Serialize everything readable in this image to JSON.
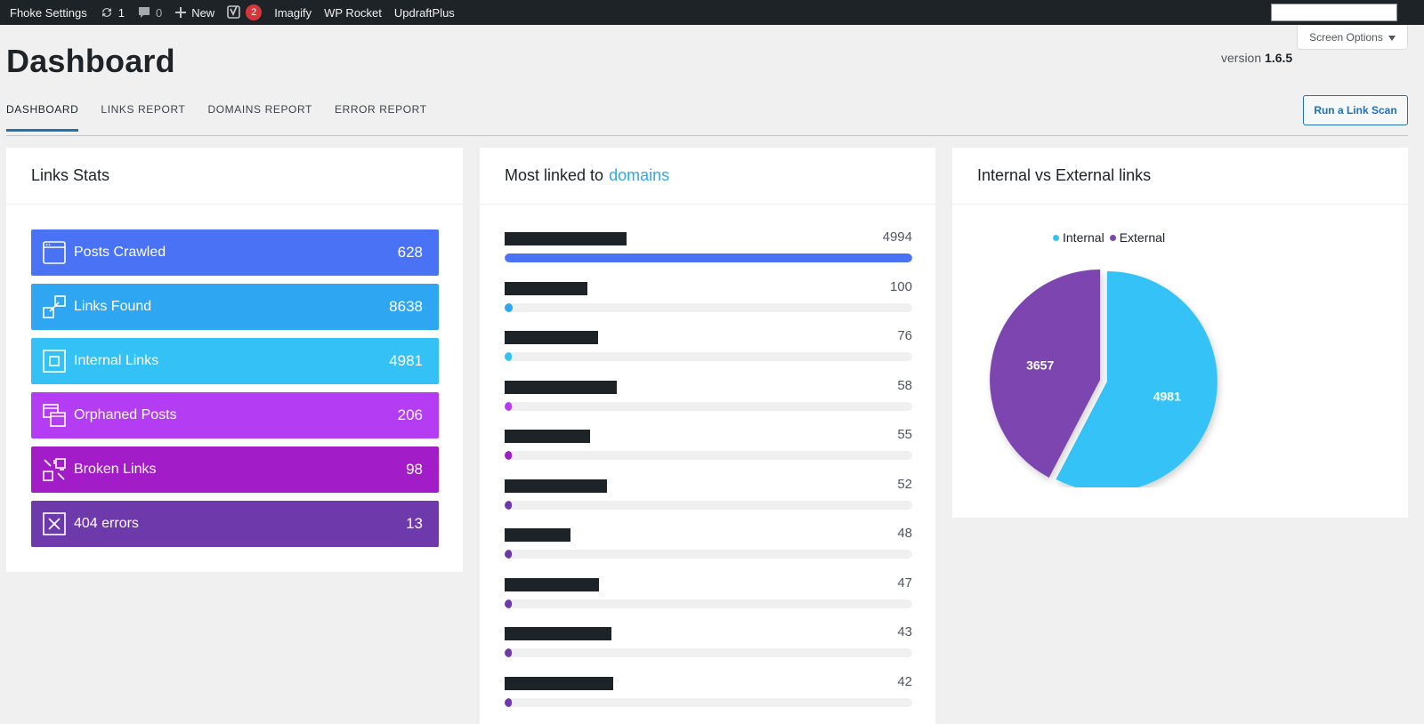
{
  "adminbar": {
    "site_name": "Fhoke Settings",
    "updates": "1",
    "comments": "0",
    "new_label": "New",
    "yoast_badge": "2",
    "items": [
      "Imagify",
      "WP Rocket",
      "UpdraftPlus"
    ]
  },
  "screen_options": "Screen Options",
  "page": {
    "title": "Dashboard",
    "version_label": "version",
    "version_number": "1.6.5",
    "scan_button": "Run a Link Scan"
  },
  "tabs": [
    "DASHBOARD",
    "LINKS REPORT",
    "DOMAINS REPORT",
    "ERROR REPORT"
  ],
  "links_stats": {
    "title": "Links Stats",
    "rows": [
      {
        "label": "Posts Crawled",
        "value": "628",
        "color": "#4a72f5",
        "icon": "window-icon"
      },
      {
        "label": "Links Found",
        "value": "8638",
        "color": "#2fa6f2",
        "icon": "link-icon"
      },
      {
        "label": "Internal Links",
        "value": "4981",
        "color": "#33c1f6",
        "icon": "square-icon"
      },
      {
        "label": "Orphaned Posts",
        "value": "206",
        "color": "#b43cf2",
        "icon": "stacked-windows-icon"
      },
      {
        "label": "Broken Links",
        "value": "98",
        "color": "#a21cc7",
        "icon": "broken-link-icon"
      },
      {
        "label": "404 errors",
        "value": "13",
        "color": "#6e3aab",
        "icon": "x-box-icon"
      }
    ]
  },
  "domains": {
    "title": "Most linked to",
    "title_link": "domains",
    "rows": [
      {
        "count": "4994",
        "value": 4994,
        "color": "#4a72f5"
      },
      {
        "count": "100",
        "value": 100,
        "color": "#2fa6f2"
      },
      {
        "count": "76",
        "value": 76,
        "color": "#33c1f6"
      },
      {
        "count": "58",
        "value": 58,
        "color": "#b43cf2"
      },
      {
        "count": "55",
        "value": 55,
        "color": "#a21cc7"
      },
      {
        "count": "52",
        "value": 52,
        "color": "#6e3aab"
      },
      {
        "count": "48",
        "value": 48,
        "color": "#6e3aab"
      },
      {
        "count": "47",
        "value": 47,
        "color": "#6e3aab"
      },
      {
        "count": "43",
        "value": 43,
        "color": "#6e3aab"
      },
      {
        "count": "42",
        "value": 42,
        "color": "#6e3aab"
      }
    ]
  },
  "internal_external": {
    "title": "Internal vs External links",
    "legend": [
      {
        "label": "Internal",
        "color": "#35c3f7"
      },
      {
        "label": "External",
        "color": "#7b44b0"
      }
    ]
  },
  "chart_data": {
    "type": "pie",
    "categories": [
      "Internal",
      "External"
    ],
    "values": [
      4981,
      3657
    ],
    "colors": [
      "#35c3f7",
      "#7b44b0"
    ]
  }
}
